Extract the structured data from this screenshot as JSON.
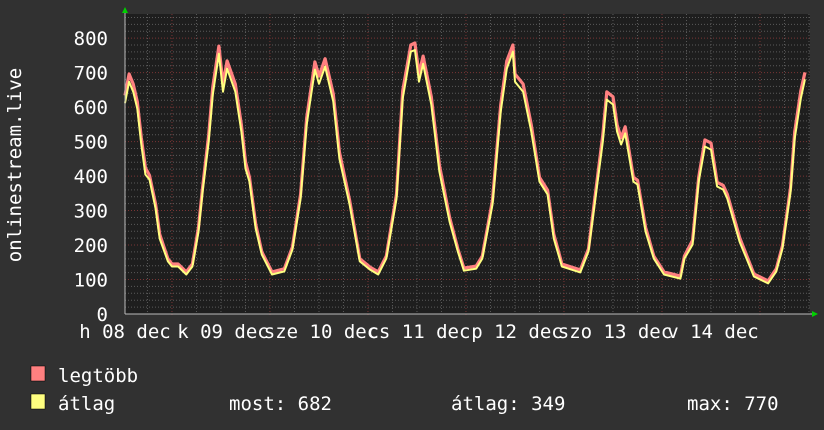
{
  "chart_data": {
    "type": "line",
    "ylabel": "onlinestream.live",
    "ylim": [
      0,
      870
    ],
    "yticks": [
      0,
      100,
      200,
      300,
      400,
      500,
      600,
      700,
      800
    ],
    "xlim": [
      "12-07 12:30",
      "12-14 12:15"
    ],
    "xtick_labels": [
      "h 08 dec",
      "k 09 dec",
      "sze 10 dec",
      "cs 11 dec",
      "p 12 dec",
      "szo 13 dec",
      "v 14 dec"
    ],
    "grid": true,
    "legend_placement": "bottom",
    "colors": {
      "background": "#313131",
      "plot_background": "#1e1e1e",
      "minor_grid": "#5a5a5a",
      "major_grid": "#7a3535",
      "arrow": "#00d000",
      "max_series": "#ff8080",
      "avg_series": "#ffff80"
    },
    "x": [
      "12-07 12:30",
      "12-07 13:30",
      "12-07 14:30",
      "12-07 15:30",
      "12-07 16:30",
      "12-07 17:30",
      "12-07 18:30",
      "12-07 20:00",
      "12-07 21:00",
      "12-07 23:00",
      "12-08 00:00",
      "12-08 01:30",
      "12-08 03:30",
      "12-08 05:00",
      "12-08 06:30",
      "12-08 07:30",
      "12-08 09:00",
      "12-08 10:00",
      "12-08 11:30",
      "12-08 12:30",
      "12-08 13:30",
      "12-08 15:30",
      "12-08 17:00",
      "12-08 18:00",
      "12-08 19:00",
      "12-08 20:30",
      "12-08 22:00",
      "12-09 00:30",
      "12-09 03:30",
      "12-09 05:30",
      "12-09 07:30",
      "12-09 09:00",
      "12-09 11:00",
      "12-09 12:00",
      "12-09 13:30",
      "12-09 15:30",
      "12-09 17:00",
      "12-09 19:30",
      "12-09 22:00",
      "12-10 00:30",
      "12-10 02:30",
      "12-10 04:30",
      "12-10 07:00",
      "12-10 08:30",
      "12-10 10:30",
      "12-10 11:30",
      "12-10 12:30",
      "12-10 13:30",
      "12-10 15:30",
      "12-10 17:30",
      "12-10 20:00",
      "12-10 22:00",
      "12-10 23:30",
      "12-11 02:30",
      "12-11 04:00",
      "12-11 06:30",
      "12-11 08:30",
      "12-11 10:00",
      "12-11 11:30",
      "12-11 12:00",
      "12-11 14:00",
      "12-11 16:00",
      "12-11 18:00",
      "12-11 20:00",
      "12-11 21:30",
      "12-11 23:30",
      "12-12 04:00",
      "12-12 06:00",
      "12-12 07:30",
      "12-12 09:30",
      "12-12 10:30",
      "12-12 12:00",
      "12-12 13:00",
      "12-12 14:00",
      "12-12 15:00",
      "12-12 17:00",
      "12-12 18:00",
      "12-12 20:00",
      "12-12 22:00",
      "12-13 00:30",
      "12-13 04:30",
      "12-13 05:30",
      "12-13 07:30",
      "12-13 09:00",
      "12-13 10:30",
      "12-13 12:00",
      "12-13 13:30",
      "12-13 15:00",
      "12-13 16:00",
      "12-13 19:00",
      "12-13 22:30",
      "12-14 02:00",
      "12-14 04:00",
      "12-14 05:30",
      "12-14 07:30",
      "12-14 08:30",
      "12-14 10:00",
      "12-14 11:00"
    ],
    "series": [
      {
        "name": "legtöbb",
        "values": [
          634,
          696,
          667,
          615,
          511,
          424,
          402,
          318,
          231,
          160,
          145,
          145,
          122,
          145,
          251,
          367,
          519,
          659,
          777,
          667,
          734,
          667,
          548,
          441,
          396,
          260,
          180,
          122,
          131,
          194,
          347,
          569,
          731,
          690,
          740,
          638,
          470,
          330,
          160,
          136,
          122,
          168,
          347,
          647,
          780,
          786,
          696,
          748,
          630,
          432,
          280,
          189,
          133,
          139,
          168,
          330,
          606,
          734,
          780,
          696,
          667,
          548,
          396,
          359,
          231,
          145,
          128,
          189,
          330,
          519,
          644,
          630,
          548,
          511,
          543,
          396,
          388,
          251,
          168,
          122,
          110,
          168,
          214,
          396,
          505,
          496,
          382,
          373,
          347,
          222,
          116,
          96,
          131,
          197,
          367,
          528,
          647,
          700
        ]
      },
      {
        "name": "átlag",
        "values": [
          616,
          678,
          649,
          600,
          496,
          409,
          394,
          310,
          223,
          157,
          142,
          142,
          119,
          142,
          243,
          359,
          504,
          641,
          759,
          649,
          716,
          649,
          533,
          426,
          388,
          252,
          177,
          119,
          128,
          191,
          339,
          554,
          713,
          672,
          722,
          620,
          455,
          322,
          157,
          133,
          119,
          165,
          339,
          629,
          765,
          770,
          678,
          730,
          612,
          417,
          272,
          186,
          130,
          136,
          165,
          322,
          591,
          716,
          765,
          678,
          649,
          533,
          388,
          351,
          223,
          142,
          125,
          186,
          322,
          504,
          626,
          612,
          533,
          496,
          528,
          388,
          380,
          243,
          165,
          119,
          107,
          165,
          206,
          388,
          490,
          481,
          374,
          365,
          339,
          214,
          113,
          93,
          128,
          194,
          359,
          513,
          629,
          684
        ]
      }
    ]
  },
  "legend": {
    "items": [
      {
        "label": "legtöbb",
        "color": "#ff8080"
      },
      {
        "label": "átlag",
        "color": "#ffff80"
      }
    ],
    "stats": {
      "current": "most: 682",
      "average": "átlag: 349",
      "maximum": "max: 770"
    }
  }
}
